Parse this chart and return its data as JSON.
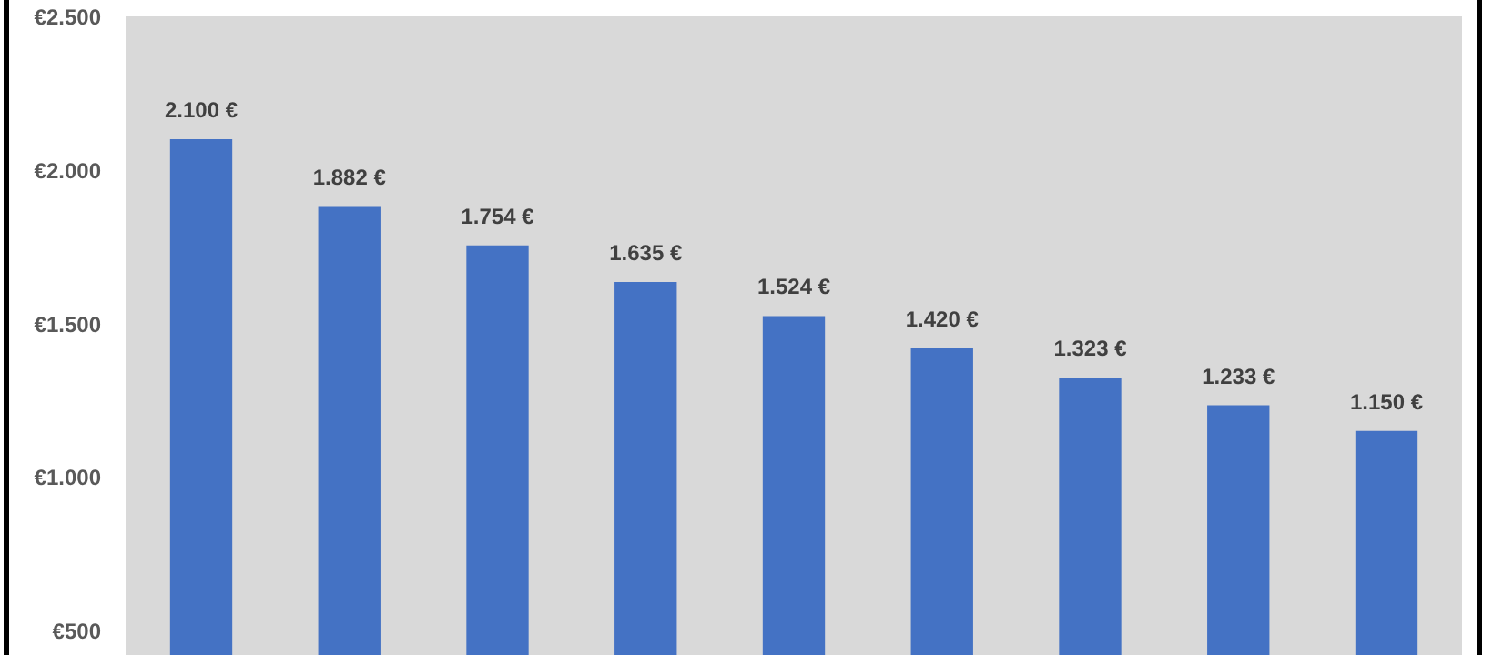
{
  "chart_data": {
    "type": "bar",
    "categories": [
      null,
      null,
      null,
      null,
      null,
      null,
      null,
      null,
      null
    ],
    "values": [
      2100,
      1882,
      1754,
      1635,
      1524,
      1420,
      1323,
      1233,
      1150
    ],
    "value_labels": [
      "2.100 €",
      "1.882 €",
      "1.754 €",
      "1.635 €",
      "1.524 €",
      "1.420 €",
      "1.323 €",
      "1.233 €",
      "1.150 €"
    ],
    "color": "#4472c4",
    "ylim": [
      420,
      2500
    ],
    "yticks": [
      {
        "value": 500,
        "label": "€500"
      },
      {
        "value": 1000,
        "label": "€1.000"
      },
      {
        "value": 1500,
        "label": "€1.500"
      },
      {
        "value": 2000,
        "label": "€2.000"
      },
      {
        "value": 2500,
        "label": "€2.500"
      }
    ],
    "grid": false
  }
}
